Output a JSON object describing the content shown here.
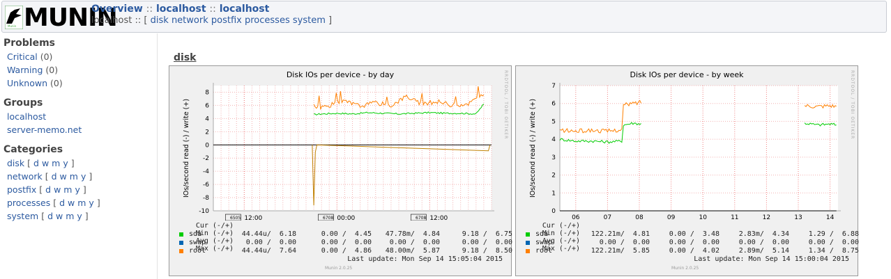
{
  "header": {
    "logo_text": "MUNIN",
    "crumb_overview": "Overview",
    "crumb_sep": "::",
    "crumb_group": "localhost",
    "crumb_host": "localhost",
    "subnav_host": "localhost",
    "subnav_sep": "::",
    "subnav_open": "[",
    "subnav_close": "]",
    "subnav_links": [
      "disk",
      "network",
      "postfix",
      "processes",
      "system"
    ]
  },
  "sidebar": {
    "problems_title": "Problems",
    "problems": [
      {
        "label": "Critical",
        "count": "(0)"
      },
      {
        "label": "Warning",
        "count": "(0)"
      },
      {
        "label": "Unknown",
        "count": "(0)"
      }
    ],
    "groups_title": "Groups",
    "groups": [
      "localhost",
      "server-memo.net"
    ],
    "categories_title": "Categories",
    "categories": [
      "disk",
      "network",
      "postfix",
      "processes",
      "system"
    ],
    "period_links": [
      "d",
      "w",
      "m",
      "y"
    ]
  },
  "main": {
    "category_title": "disk"
  },
  "colors": {
    "sda": "#00cc00",
    "swap": "#0066b3",
    "root": "#ff8000",
    "link": "#2c5aa0"
  },
  "legend_headers": [
    "Cur (-/+)",
    "Min (-/+)",
    "Avg (-/+)",
    "Max (-/+)"
  ],
  "rrdtool_text": "RRDTOOL / TOBI OETIKER",
  "munin_version": "Munin 2.0.25",
  "graphs": [
    {
      "title": "Disk IOs per device - by day",
      "ylabel": "IOs/second read (-) / write (+)",
      "rows": [
        {
          "name": "sda",
          "cur": "44.44u/  6.18",
          "min": "0.00 /  4.45",
          "avg": "47.78m/  4.84",
          "max": "9.18 /  6.75"
        },
        {
          "name": "swap",
          "cur": "0.00 /  0.00",
          "min": "0.00 /  0.00",
          "avg": "0.00 /  0.00",
          "max": "0.00 /  0.00"
        },
        {
          "name": "root",
          "cur": "44.44u/  7.64",
          "min": "0.00 /  4.86",
          "avg": "48.00m/  5.87",
          "max": "9.18 /  8.50"
        }
      ],
      "last_update": "Last update:  Mon Sep 14 15:05:04 2015"
    },
    {
      "title": "Disk IOs per device - by week",
      "ylabel": "IOs/second read (-) / write (+)",
      "rows": [
        {
          "name": "sda",
          "cur": "122.21m/  4.81",
          "min": "0.00 /  3.48",
          "avg": "2.83m/  4.34",
          "max": "1.29 /  6.88"
        },
        {
          "name": "swap",
          "cur": "0.00 /  0.00",
          "min": "0.00 /  0.00",
          "avg": "0.00 /  0.00",
          "max": "0.00 /  0.00"
        },
        {
          "name": "root",
          "cur": "122.21m/  5.85",
          "min": "0.00 /  4.02",
          "avg": "2.89m/  5.14",
          "max": "1.34 /  8.75"
        }
      ],
      "last_update": "Last update:  Mon Sep 14 15:00:04 2015"
    }
  ],
  "chart_data": [
    {
      "type": "line",
      "title": "Disk IOs per device - by day",
      "ylabel": "IOs/second read (-) / write (+)",
      "ylim": [
        -10,
        9
      ],
      "yticks": [
        8,
        6,
        4,
        2,
        0,
        -2,
        -4,
        -6,
        -8,
        -10
      ],
      "xticks": [
        "12:00",
        "00:00",
        "12:00"
      ],
      "xtick_tags": [
        "6505",
        "6708",
        "6708"
      ],
      "xlim_hours": [
        0,
        36
      ],
      "xtick_hours": [
        4,
        16,
        28
      ],
      "grid": true,
      "series": [
        {
          "name": "sda",
          "x_hours": [
            13,
            14,
            16,
            18,
            20,
            22,
            24,
            26,
            28,
            30,
            32,
            34,
            35
          ],
          "values": [
            4.6,
            4.7,
            4.8,
            4.7,
            4.9,
            4.8,
            4.7,
            4.8,
            4.9,
            4.8,
            4.8,
            4.7,
            6.2
          ]
        },
        {
          "name": "swap",
          "x_hours": [
            0,
            36
          ],
          "values": [
            0,
            0
          ]
        },
        {
          "name": "root",
          "x_hours": [
            13,
            13.5,
            15,
            17,
            19,
            21,
            23,
            25,
            27,
            29,
            31,
            33,
            35
          ],
          "values": [
            6.2,
            5.6,
            6.0,
            6.6,
            5.9,
            6.4,
            6.0,
            7.4,
            6.1,
            6.6,
            6.0,
            6.3,
            7.6
          ]
        },
        {
          "name": "root (read)",
          "x_hours": [
            12.8,
            13.0,
            13.2,
            13.4,
            35.6,
            35.8
          ],
          "values": [
            0,
            -9.18,
            -1.1,
            0,
            -0.9,
            0
          ]
        }
      ]
    },
    {
      "type": "line",
      "title": "Disk IOs per device - by week",
      "ylabel": "IOs/second read (-) / write (+)",
      "ylim": [
        0,
        7
      ],
      "yticks": [
        7.0,
        6.0,
        5.0,
        4.0,
        3.0,
        2.0,
        1.0,
        0.0
      ],
      "xticks": [
        "06",
        "07",
        "08",
        "09",
        "10",
        "11",
        "12",
        "13",
        "14"
      ],
      "grid": true,
      "series": [
        {
          "name": "sda",
          "x_days": [
            5.5,
            6.0,
            6.5,
            7.0,
            7.45,
            7.5,
            7.8,
            8.1,
            13.2,
            13.6,
            14.0,
            14.2
          ],
          "values": [
            4.0,
            3.9,
            3.9,
            3.85,
            3.9,
            4.8,
            4.9,
            4.85,
            4.9,
            4.8,
            4.85,
            4.8
          ]
        },
        {
          "name": "swap",
          "x_days": [
            5.5,
            14.2
          ],
          "values": [
            0,
            0
          ]
        },
        {
          "name": "root",
          "x_days": [
            5.5,
            6.0,
            6.5,
            7.0,
            7.45,
            7.5,
            7.8,
            8.1,
            13.2,
            13.6,
            14.0,
            14.2
          ],
          "values": [
            4.5,
            4.45,
            4.5,
            4.45,
            4.55,
            5.9,
            6.0,
            6.1,
            5.9,
            5.85,
            5.9,
            5.85
          ]
        }
      ]
    }
  ]
}
